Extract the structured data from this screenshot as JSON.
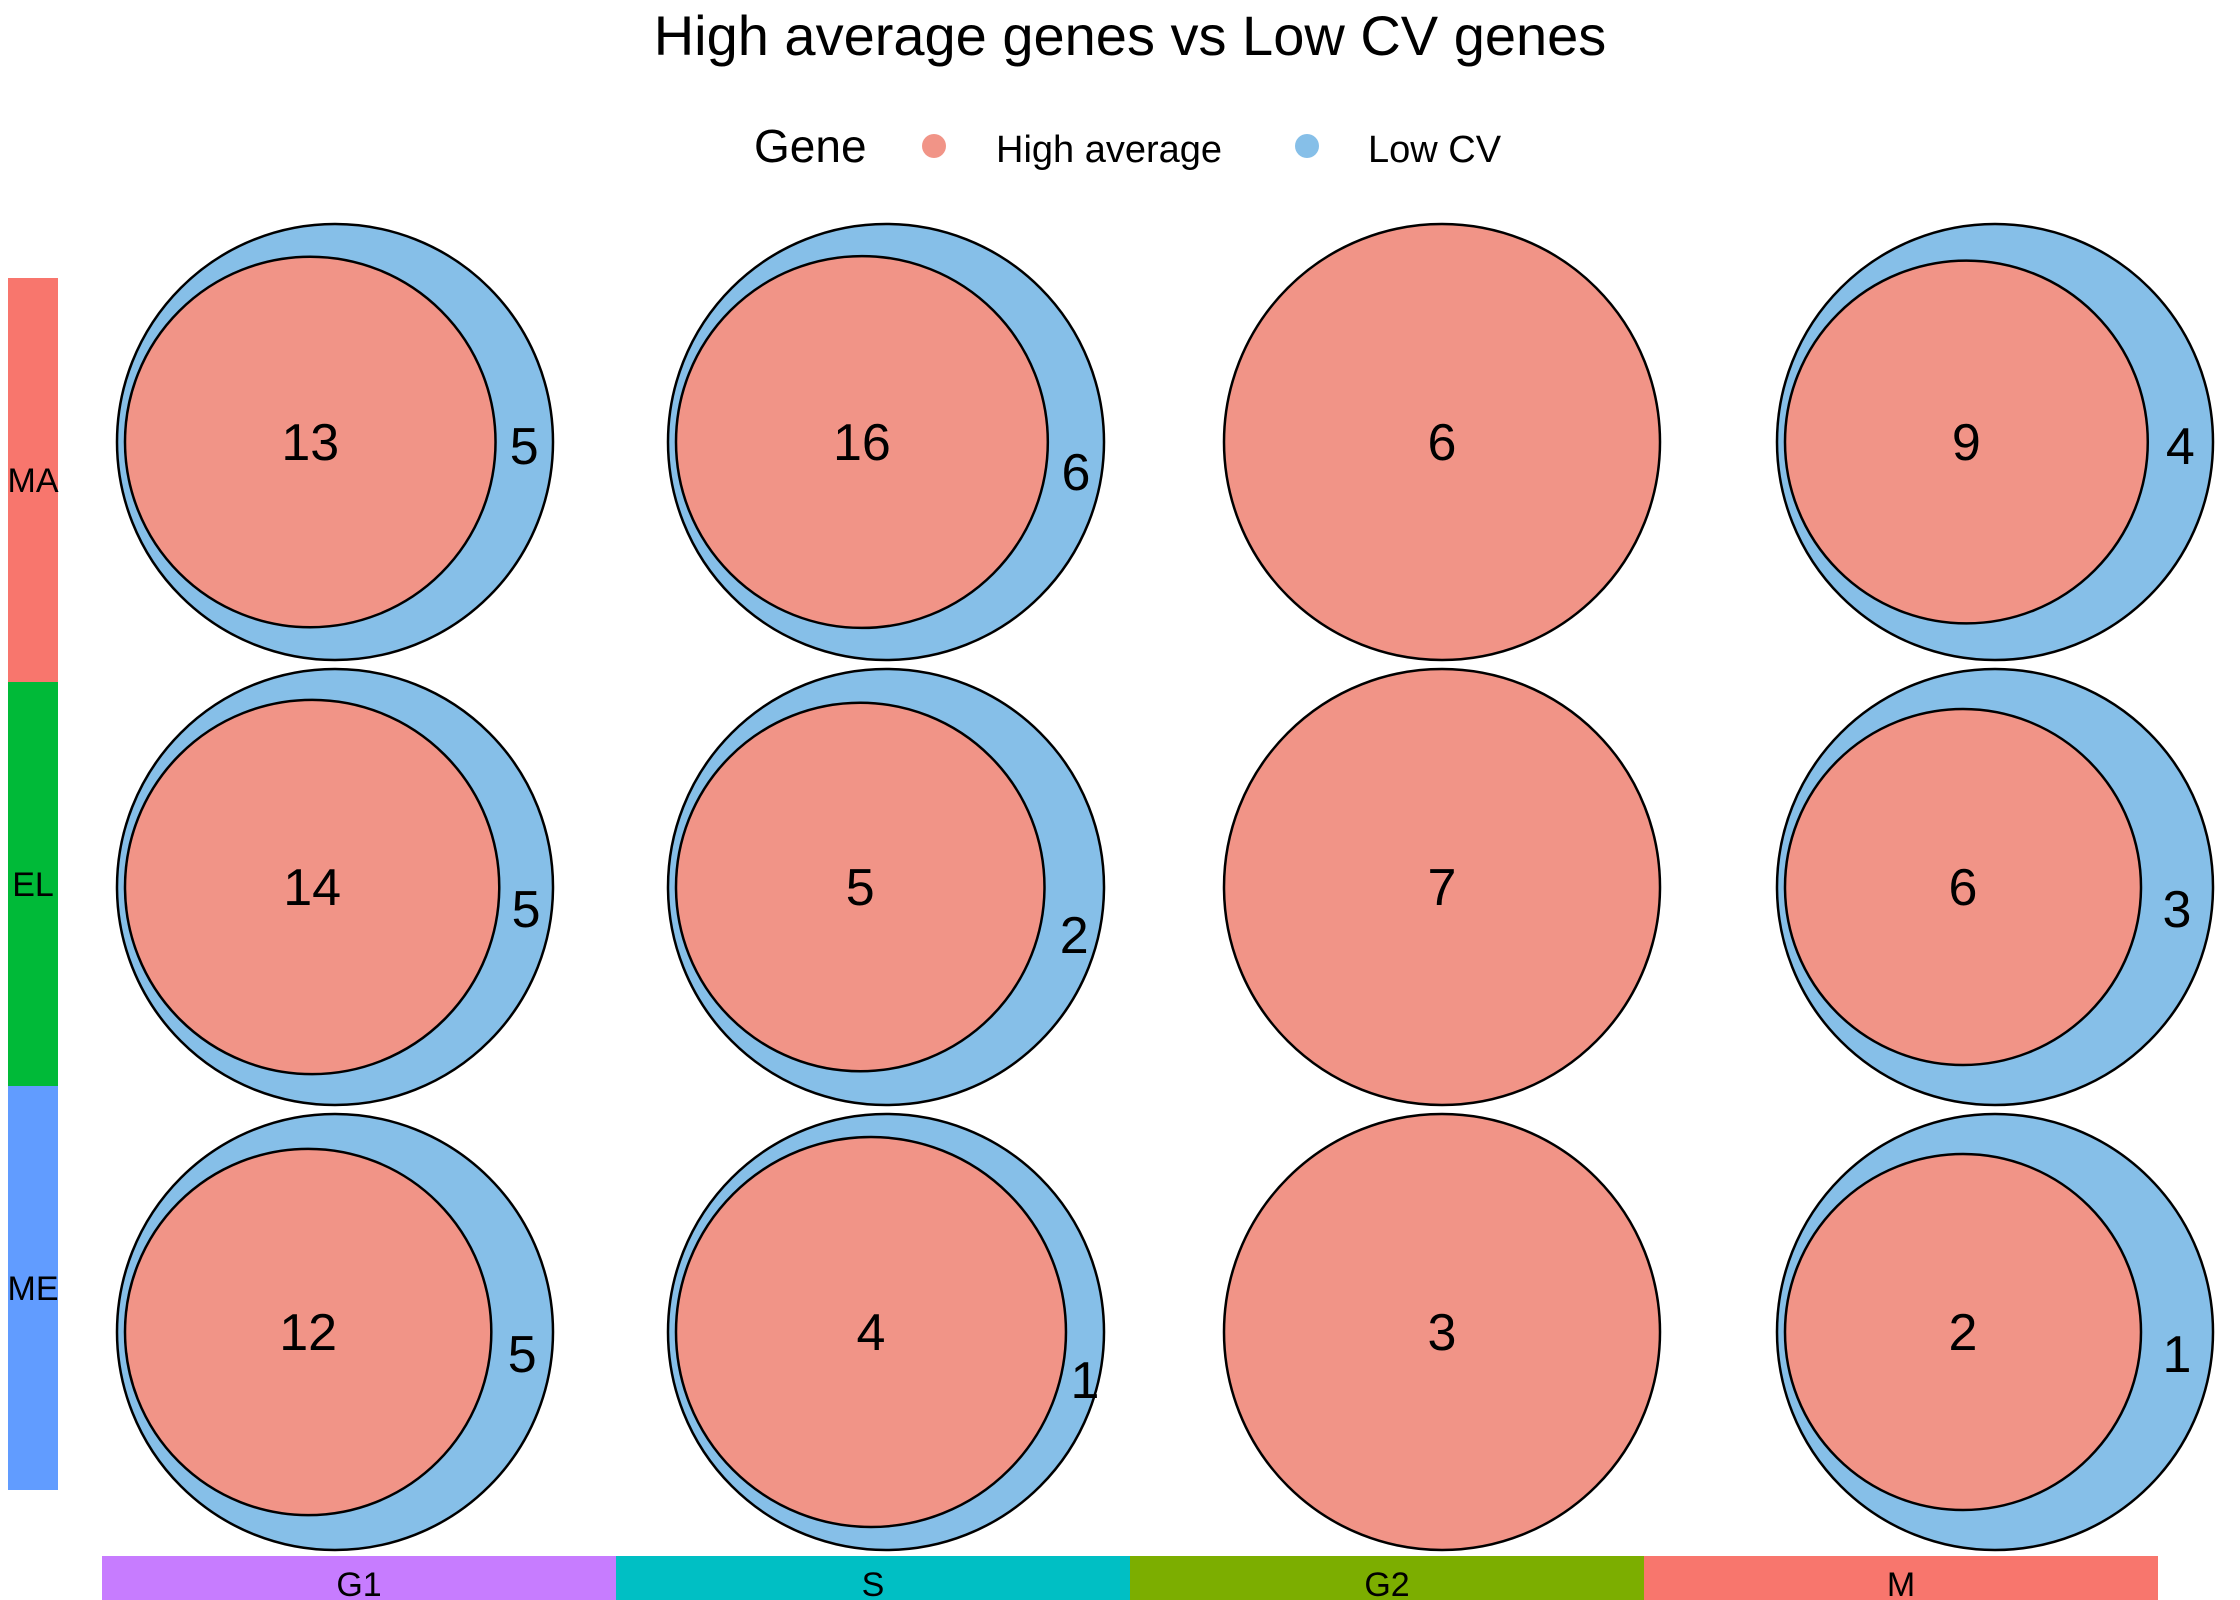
{
  "chart_data": {
    "type": "venn",
    "title": "High average genes vs Low CV genes",
    "legend": {
      "title": "Gene",
      "position": "top",
      "items": [
        {
          "label": "High average",
          "color": "#F19487"
        },
        {
          "label": "Low CV",
          "color": "#86BFE8"
        }
      ]
    },
    "rows": [
      {
        "label": "MA",
        "color": "#F8766D"
      },
      {
        "label": "EL",
        "color": "#00BA38"
      },
      {
        "label": "ME",
        "color": "#619CFF"
      }
    ],
    "columns": [
      {
        "label": "G1",
        "color": "#C77CFF"
      },
      {
        "label": "S",
        "color": "#00BFC4"
      },
      {
        "label": "G2",
        "color": "#7CAE00"
      },
      {
        "label": "M",
        "color": "#F8766D"
      }
    ],
    "cells": [
      [
        {
          "high_average_only": 0,
          "both": 13,
          "low_cv_only": 5
        },
        {
          "high_average_only": 0,
          "both": 16,
          "low_cv_only": 6
        },
        {
          "high_average_only": 0,
          "both": 6,
          "low_cv_only": 0
        },
        {
          "high_average_only": 0,
          "both": 9,
          "low_cv_only": 4
        }
      ],
      [
        {
          "high_average_only": 0,
          "both": 14,
          "low_cv_only": 5
        },
        {
          "high_average_only": 0,
          "both": 5,
          "low_cv_only": 2
        },
        {
          "high_average_only": 0,
          "both": 7,
          "low_cv_only": 0
        },
        {
          "high_average_only": 0,
          "both": 6,
          "low_cv_only": 3
        }
      ],
      [
        {
          "high_average_only": 0,
          "both": 12,
          "low_cv_only": 5
        },
        {
          "high_average_only": 0,
          "both": 4,
          "low_cv_only": 1
        },
        {
          "high_average_only": 0,
          "both": 3,
          "low_cv_only": 0
        },
        {
          "high_average_only": 0,
          "both": 2,
          "low_cv_only": 1
        }
      ]
    ]
  }
}
